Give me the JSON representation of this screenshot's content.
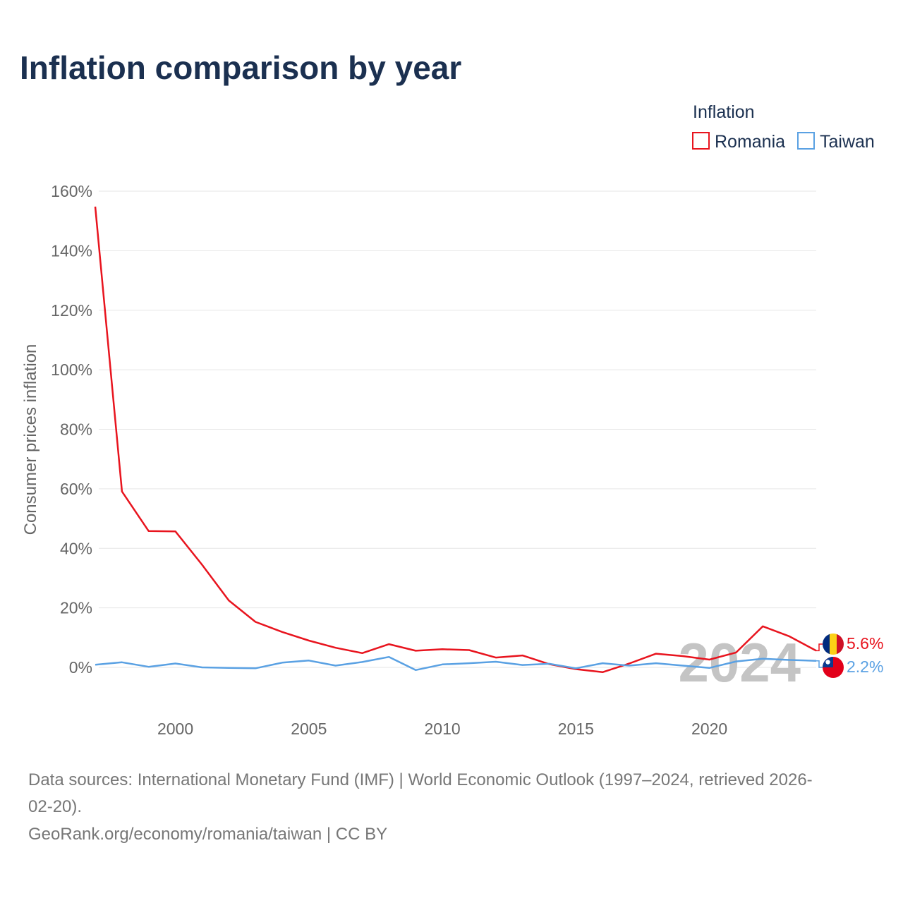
{
  "chart_data": {
    "type": "line",
    "title": "Inflation comparison by year",
    "legend_title": "Inflation",
    "legend_position": "top-right",
    "ylabel": "Consumer prices inflation",
    "xlabel": "",
    "xlim": [
      1997,
      2024
    ],
    "ylim": [
      -10,
      160
    ],
    "y_ticks": [
      0,
      20,
      40,
      60,
      80,
      100,
      120,
      140,
      160
    ],
    "y_tick_labels": [
      "0%",
      "20%",
      "40%",
      "60%",
      "80%",
      "100%",
      "120%",
      "140%",
      "160%"
    ],
    "x_ticks": [
      2000,
      2005,
      2010,
      2015,
      2020
    ],
    "x_tick_labels": [
      "2000",
      "2005",
      "2010",
      "2015",
      "2020"
    ],
    "grid": true,
    "year_label": "2024",
    "x": [
      1997,
      1998,
      1999,
      2000,
      2001,
      2002,
      2003,
      2004,
      2005,
      2006,
      2007,
      2008,
      2009,
      2010,
      2011,
      2012,
      2013,
      2014,
      2015,
      2016,
      2017,
      2018,
      2019,
      2020,
      2021,
      2022,
      2023,
      2024
    ],
    "series": [
      {
        "name": "Romania",
        "color": "#e8141e",
        "end_label": "5.6%",
        "values": [
          154.8,
          59.1,
          45.8,
          45.7,
          34.5,
          22.5,
          15.3,
          11.9,
          9.0,
          6.6,
          4.8,
          7.8,
          5.6,
          6.1,
          5.8,
          3.3,
          4.0,
          1.1,
          -0.6,
          -1.6,
          1.3,
          4.6,
          3.8,
          2.6,
          5.0,
          13.8,
          10.4,
          5.6
        ]
      },
      {
        "name": "Taiwan",
        "color": "#5aa1e3",
        "end_label": "2.2%",
        "values": [
          0.9,
          1.7,
          0.2,
          1.3,
          0.0,
          -0.2,
          -0.3,
          1.6,
          2.3,
          0.6,
          1.8,
          3.5,
          -0.9,
          1.0,
          1.4,
          1.9,
          0.8,
          1.2,
          -0.3,
          1.4,
          0.6,
          1.4,
          0.6,
          -0.2,
          2.0,
          2.9,
          2.5,
          2.2
        ]
      }
    ]
  },
  "footer": {
    "source_line1": "Data sources: International Monetary Fund (IMF) | World Economic Outlook (1997–2024, retrieved 2026-",
    "source_line2": "02-20).",
    "attribution": "GeoRank.org/economy/romania/taiwan | CC BY"
  }
}
